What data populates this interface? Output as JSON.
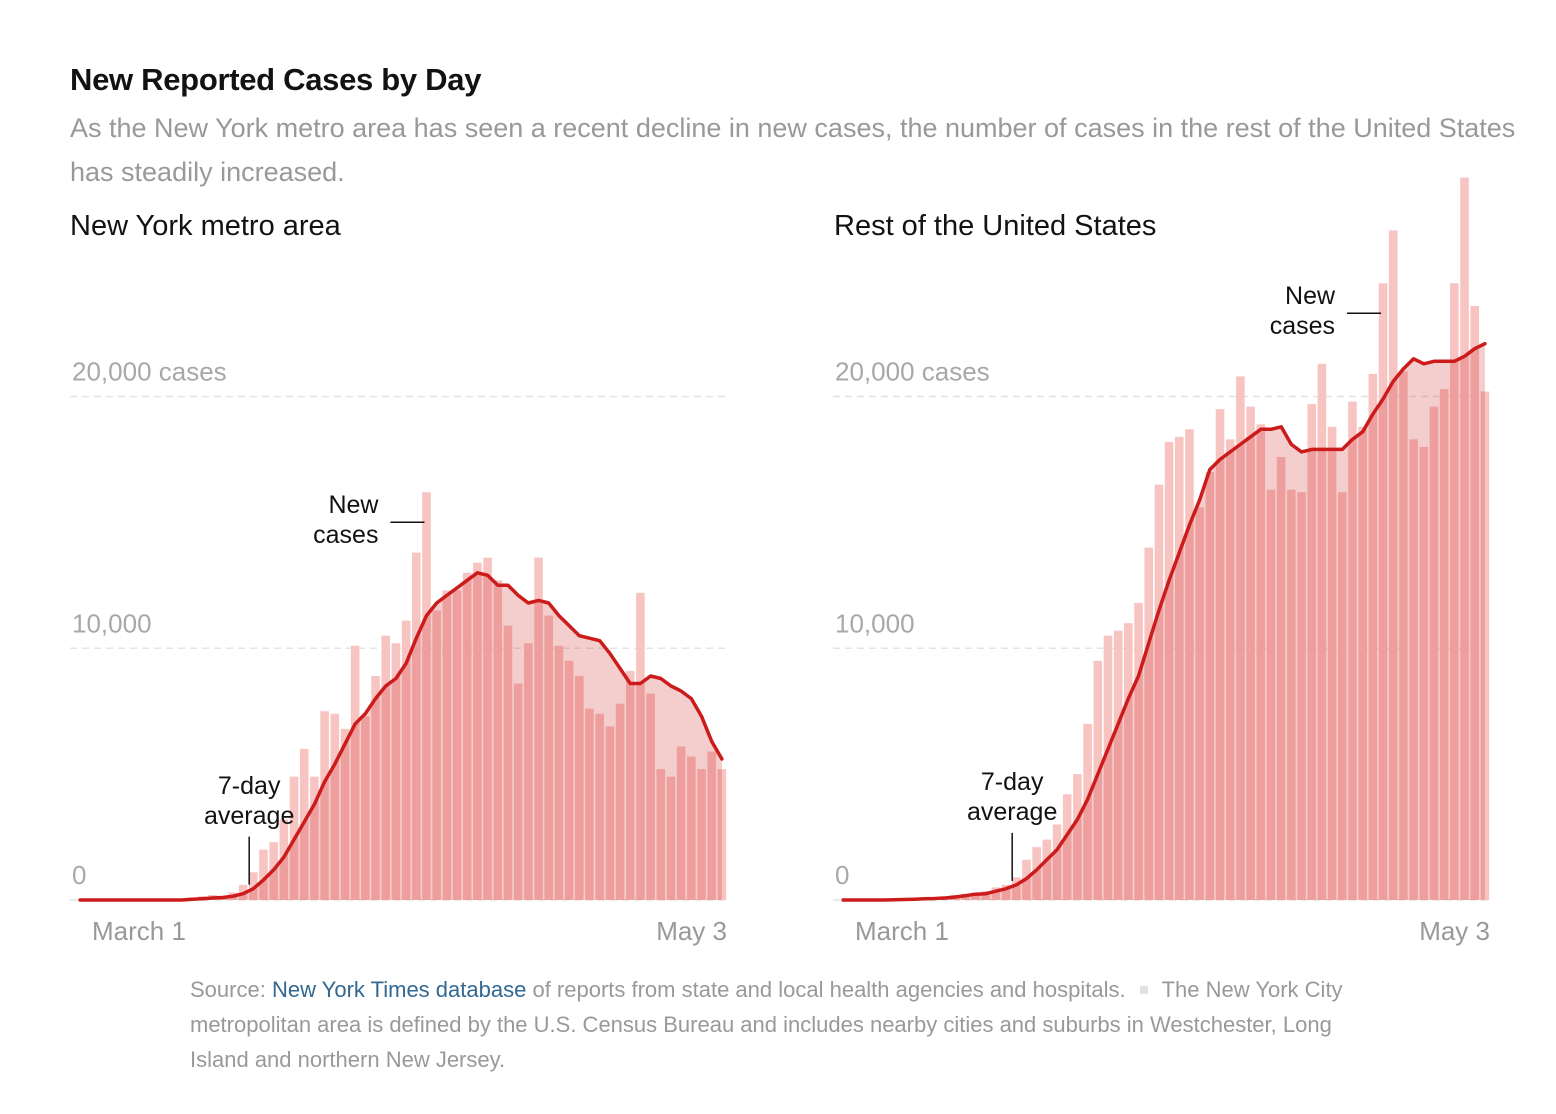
{
  "title": "New Reported Cases by Day",
  "subtitle": "As the New York metro area has seen a recent decline in new cases, the number of cases in the rest of the United States has steadily increased.",
  "chart_data": [
    {
      "type": "bar",
      "title": "New York metro area",
      "categories": [
        "March 1",
        null,
        null,
        null,
        null,
        null,
        null,
        null,
        null,
        null,
        null,
        null,
        null,
        null,
        null,
        null,
        null,
        null,
        null,
        null,
        null,
        null,
        null,
        null,
        null,
        null,
        null,
        null,
        null,
        null,
        null,
        null,
        null,
        null,
        null,
        null,
        null,
        null,
        null,
        null,
        null,
        null,
        null,
        null,
        null,
        null,
        null,
        null,
        null,
        null,
        null,
        null,
        null,
        null,
        null,
        null,
        null,
        null,
        null,
        null,
        null,
        null,
        null,
        "May 3"
      ],
      "series": [
        {
          "name": "New cases",
          "color": "#f8c4c2",
          "values": [
            0,
            0,
            0,
            0,
            0,
            0,
            0,
            0,
            0,
            0,
            20,
            100,
            150,
            200,
            150,
            300,
            600,
            1100,
            2000,
            2300,
            3200,
            4900,
            6000,
            4900,
            7500,
            7400,
            6800,
            10100,
            7300,
            8900,
            10500,
            10200,
            11100,
            13800,
            16200,
            11500,
            12300,
            12300,
            13000,
            13400,
            13600,
            12700,
            10900,
            8600,
            10200,
            13600,
            11300,
            10100,
            9500,
            8900,
            7600,
            7400,
            6900,
            7800,
            9100,
            12200,
            8200,
            5200,
            4900,
            6100,
            5700,
            5200,
            5900,
            5200
          ]
        },
        {
          "name": "7-day average",
          "color": "#cc1b1b",
          "values": [
            0,
            0,
            0,
            0,
            0,
            0,
            0,
            0,
            0,
            0,
            0,
            30,
            50,
            80,
            100,
            150,
            250,
            450,
            800,
            1200,
            1700,
            2400,
            3100,
            3800,
            4700,
            5400,
            6200,
            7000,
            7400,
            8000,
            8500,
            8800,
            9400,
            10400,
            11300,
            11800,
            12100,
            12400,
            12700,
            13000,
            12900,
            12500,
            12500,
            12100,
            11800,
            11900,
            11800,
            11300,
            10900,
            10500,
            10400,
            10300,
            9800,
            9200,
            8600,
            8600,
            8900,
            8800,
            8500,
            8300,
            8000,
            7300,
            6300,
            5600
          ]
        }
      ],
      "ylim": [
        0,
        29000
      ],
      "yticks": [
        0,
        {
          "value": 10000,
          "label": "10,000"
        },
        {
          "value": 20000,
          "label": "20,000 cases"
        }
      ]
    },
    {
      "type": "bar",
      "title": "Rest of the United States",
      "categories": [
        "March 1",
        null,
        null,
        null,
        null,
        null,
        null,
        null,
        null,
        null,
        null,
        null,
        null,
        null,
        null,
        null,
        null,
        null,
        null,
        null,
        null,
        null,
        null,
        null,
        null,
        null,
        null,
        null,
        null,
        null,
        null,
        null,
        null,
        null,
        null,
        null,
        null,
        null,
        null,
        null,
        null,
        null,
        null,
        null,
        null,
        null,
        null,
        null,
        null,
        null,
        null,
        null,
        null,
        null,
        null,
        null,
        null,
        null,
        null,
        null,
        null,
        null,
        null,
        "May 3"
      ],
      "series": [
        {
          "name": "New cases",
          "color": "#f8c4c2",
          "values": [
            0,
            0,
            0,
            0,
            0,
            10,
            20,
            30,
            50,
            100,
            150,
            200,
            250,
            300,
            350,
            500,
            600,
            900,
            1600,
            2100,
            2400,
            3000,
            4200,
            5000,
            7000,
            9500,
            10500,
            10700,
            11000,
            11800,
            14000,
            16500,
            18200,
            18400,
            18700,
            15600,
            17000,
            19500,
            18300,
            20800,
            19600,
            18900,
            16300,
            17600,
            16300,
            16200,
            19700,
            21300,
            18800,
            16200,
            19800,
            18800,
            20900,
            24500,
            26600,
            21000,
            18300,
            18000,
            19600,
            20300,
            24500,
            28700,
            23600,
            20200
          ]
        },
        {
          "name": "7-day average",
          "color": "#cc1b1b",
          "values": [
            0,
            0,
            0,
            0,
            0,
            10,
            20,
            30,
            50,
            60,
            80,
            120,
            170,
            230,
            250,
            350,
            450,
            600,
            850,
            1200,
            1600,
            2000,
            2600,
            3200,
            4000,
            5000,
            6000,
            7000,
            8000,
            8900,
            10200,
            11500,
            12700,
            13800,
            14900,
            15900,
            17100,
            17500,
            17800,
            18100,
            18400,
            18700,
            18700,
            18800,
            18100,
            17800,
            17900,
            17900,
            17900,
            17900,
            18300,
            18600,
            19300,
            19900,
            20600,
            21100,
            21500,
            21300,
            21400,
            21400,
            21400,
            21600,
            21900,
            22100
          ]
        }
      ],
      "ylim": [
        0,
        29000
      ],
      "yticks": [
        0,
        {
          "value": 10000,
          "label": "10,000"
        },
        {
          "value": 20000,
          "label": "20,000 cases"
        }
      ]
    }
  ],
  "note": {
    "source_label": "Source:",
    "link": "New York Times database",
    "source_text": "of reports from state and local health agencies and hospitals.",
    "text": "The New York City metropolitan area is defined by the U.S. Census Bureau and includes nearby cities and suburbs in Westchester, Long Island and northern New Jersey."
  }
}
